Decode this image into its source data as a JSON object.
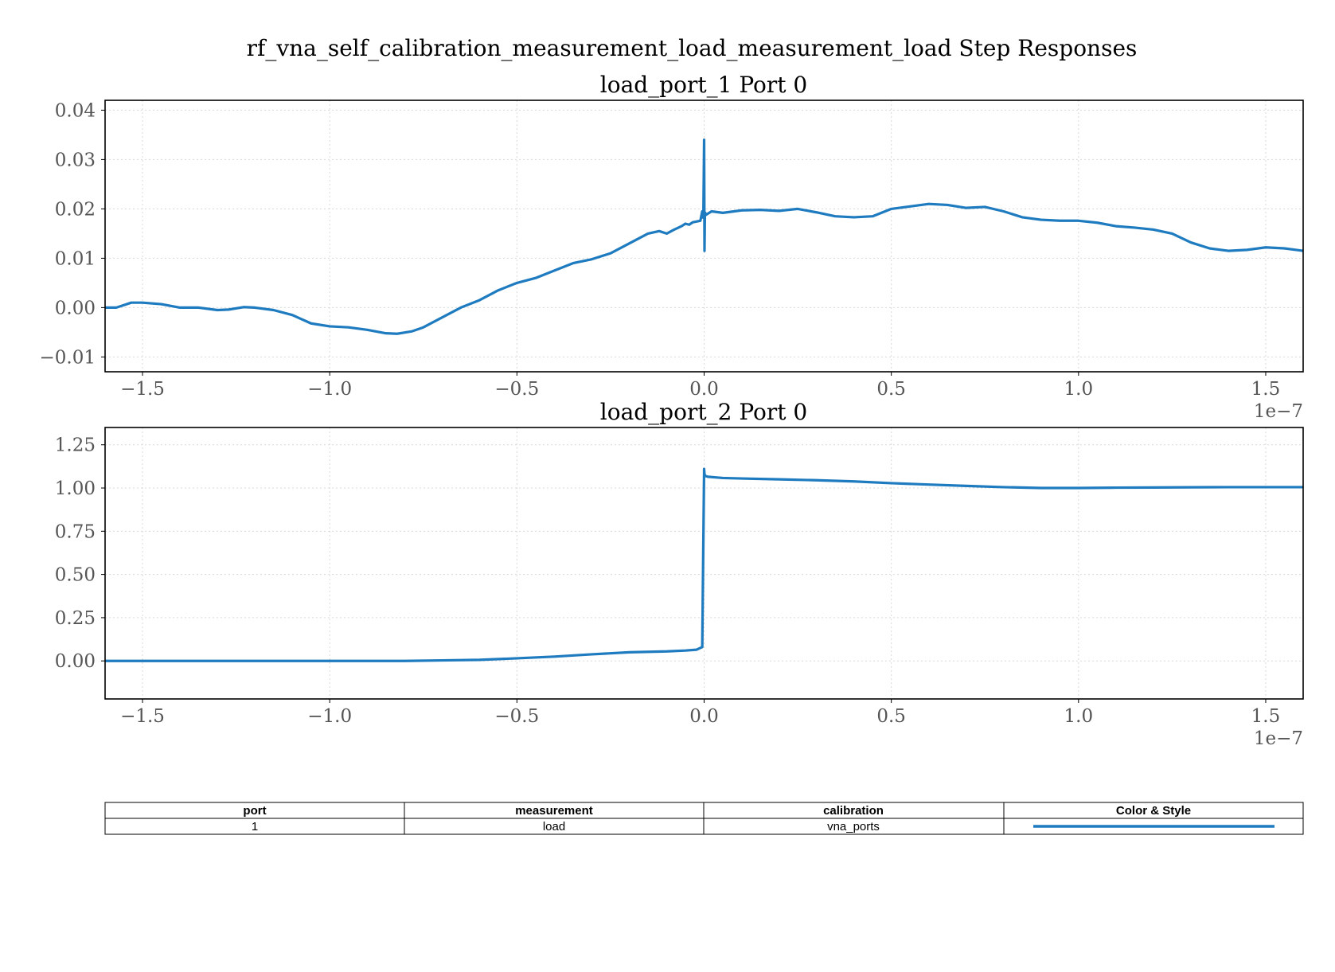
{
  "figure": {
    "suptitle": "rf_vna_self_calibration_measurement_load_measurement_load Step Responses",
    "line_color": "#1f7bbf"
  },
  "chart_data": [
    {
      "type": "line",
      "title": "load_port_1 Port 0",
      "xlim": [
        -1.6e-07,
        1.6e-07
      ],
      "ylim": [
        -0.013,
        0.042
      ],
      "x_ticks": [
        -1.5e-07,
        -1e-07,
        -5e-08,
        0,
        5e-08,
        1e-07,
        1.5e-07
      ],
      "x_tick_labels": [
        "−1.5",
        "−1.0",
        "−0.5",
        "0.0",
        "0.5",
        "1.0",
        "1.5"
      ],
      "x_offset_label": "1e−7",
      "y_ticks": [
        -0.01,
        0.0,
        0.01,
        0.02,
        0.03,
        0.04
      ],
      "y_tick_labels": [
        "−0.01",
        "0.00",
        "0.01",
        "0.02",
        "0.03",
        "0.04"
      ],
      "grid": true,
      "series": [
        {
          "x": [
            -1.6e-07,
            -1.57e-07,
            -1.53e-07,
            -1.5e-07,
            -1.45e-07,
            -1.4e-07,
            -1.35e-07,
            -1.3e-07,
            -1.27e-07,
            -1.23e-07,
            -1.2e-07,
            -1.15e-07,
            -1.1e-07,
            -1.05e-07,
            -1e-07,
            -9.5e-08,
            -9e-08,
            -8.5e-08,
            -8.2e-08,
            -7.8e-08,
            -7.5e-08,
            -7e-08,
            -6.5e-08,
            -6e-08,
            -5.5e-08,
            -5e-08,
            -4.5e-08,
            -4e-08,
            -3.5e-08,
            -3e-08,
            -2.5e-08,
            -2e-08,
            -1.5e-08,
            -1.2e-08,
            -1e-08,
            -8e-09,
            -6e-09,
            -5e-09,
            -4e-09,
            -3e-09,
            -1e-09,
            -5e-10,
            -2e-10,
            0.0,
            1e-10,
            2e-10,
            3e-10,
            5e-10,
            2e-09,
            5e-09,
            1e-08,
            1.5e-08,
            2e-08,
            2.5e-08,
            3e-08,
            3.5e-08,
            4e-08,
            4.5e-08,
            5e-08,
            5.5e-08,
            6e-08,
            6.5e-08,
            7e-08,
            7.5e-08,
            8e-08,
            8.5e-08,
            9e-08,
            9.5e-08,
            1e-07,
            1.05e-07,
            1.1e-07,
            1.15e-07,
            1.2e-07,
            1.25e-07,
            1.3e-07,
            1.35e-07,
            1.4e-07,
            1.45e-07,
            1.5e-07,
            1.55e-07,
            1.6e-07
          ],
          "y": [
            0.0,
            0.0,
            0.001,
            0.001,
            0.0007,
            0.0,
            0.0,
            -0.0005,
            -0.0004,
            0.0001,
            0.0,
            -0.0005,
            -0.0015,
            -0.0032,
            -0.0038,
            -0.004,
            -0.0045,
            -0.0052,
            -0.0053,
            -0.0048,
            -0.004,
            -0.002,
            0.0,
            0.0015,
            0.0035,
            0.005,
            0.006,
            0.0075,
            0.009,
            0.0098,
            0.011,
            0.013,
            0.015,
            0.0155,
            0.015,
            0.0158,
            0.0165,
            0.017,
            0.0168,
            0.0173,
            0.0176,
            0.0195,
            0.0182,
            0.034,
            0.0115,
            0.0185,
            0.0192,
            0.0188,
            0.0195,
            0.0192,
            0.0197,
            0.0198,
            0.0196,
            0.02,
            0.0193,
            0.0185,
            0.0183,
            0.0185,
            0.02,
            0.0205,
            0.021,
            0.0208,
            0.0202,
            0.0204,
            0.0195,
            0.0183,
            0.0178,
            0.0176,
            0.0176,
            0.0172,
            0.0165,
            0.0162,
            0.0158,
            0.015,
            0.0132,
            0.012,
            0.0115,
            0.0117,
            0.0122,
            0.012,
            0.0115
          ]
        }
      ]
    },
    {
      "type": "line",
      "title": "load_port_2 Port 0",
      "xlim": [
        -1.6e-07,
        1.6e-07
      ],
      "ylim": [
        -0.22,
        1.35
      ],
      "x_ticks": [
        -1.5e-07,
        -1e-07,
        -5e-08,
        0,
        5e-08,
        1e-07,
        1.5e-07
      ],
      "x_tick_labels": [
        "−1.5",
        "−1.0",
        "−0.5",
        "0.0",
        "0.5",
        "1.0",
        "1.5"
      ],
      "x_offset_label": "1e−7",
      "y_ticks": [
        0.0,
        0.25,
        0.5,
        0.75,
        1.0,
        1.25
      ],
      "y_tick_labels": [
        "0.00",
        "0.25",
        "0.50",
        "0.75",
        "1.00",
        "1.25"
      ],
      "grid": true,
      "series": [
        {
          "x": [
            -1.6e-07,
            -1.4e-07,
            -1.2e-07,
            -1e-07,
            -8e-08,
            -7e-08,
            -6e-08,
            -5e-08,
            -4e-08,
            -3e-08,
            -2e-08,
            -1e-08,
            -5e-09,
            -2e-09,
            -5e-10,
            0.0,
            1e-10,
            3e-10,
            1e-09,
            5e-09,
            1e-08,
            2e-08,
            3e-08,
            4e-08,
            5e-08,
            6e-08,
            7e-08,
            8e-08,
            9e-08,
            1e-07,
            1.1e-07,
            1.2e-07,
            1.3e-07,
            1.4e-07,
            1.5e-07,
            1.6e-07
          ],
          "y": [
            0.0,
            0.0,
            0.0,
            0.0,
            0.0,
            0.003,
            0.006,
            0.015,
            0.025,
            0.038,
            0.05,
            0.055,
            0.06,
            0.065,
            0.08,
            1.11,
            1.08,
            1.07,
            1.065,
            1.058,
            1.055,
            1.05,
            1.045,
            1.038,
            1.028,
            1.02,
            1.012,
            1.005,
            1.0,
            1.0,
            1.002,
            1.003,
            1.004,
            1.005,
            1.005,
            1.005
          ]
        }
      ]
    }
  ],
  "legend_table": {
    "headers": [
      "port",
      "measurement",
      "calibration",
      "Color & Style"
    ],
    "rows": [
      {
        "port": "1",
        "measurement": "load",
        "calibration": "vna_ports",
        "color": "#1f7bbf",
        "style": "solid"
      }
    ]
  }
}
